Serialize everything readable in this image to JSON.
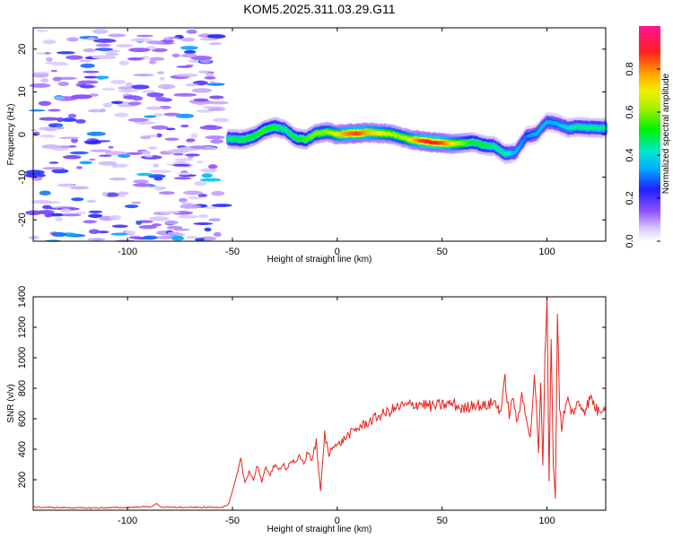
{
  "title": "KOM5.2025.311.03.29.G11",
  "colors": {
    "snr_line": "#e8231e",
    "echo_low": "#8a3cff",
    "echo_mid": "#00e0c0",
    "echo_high": "#ff2020",
    "noise": "#c9a8ff"
  },
  "chart_data": [
    {
      "type": "heatmap",
      "name": "spectrogram",
      "xlabel": "Height of straight line (km)",
      "ylabel": "Frequency (Hz)",
      "xlim": [
        -145,
        128
      ],
      "ylim": [
        -25,
        25
      ],
      "xticks": [
        -100,
        -50,
        0,
        50,
        100
      ],
      "yticks": [
        -20,
        -10,
        0,
        10,
        20
      ],
      "colorbar": {
        "label": "Normalized spectral amplitude",
        "range": [
          0,
          1
        ],
        "ticks": [
          "0.0",
          "0.2",
          "0.4",
          "0.6",
          "0.8"
        ],
        "tick_values": [
          0.0,
          0.2,
          0.4,
          0.6,
          0.8
        ]
      },
      "echo_trace": {
        "height_km": [
          -52,
          -45,
          -40,
          -35,
          -30,
          -25,
          -20,
          -15,
          -10,
          -5,
          0,
          5,
          10,
          15,
          20,
          25,
          30,
          35,
          40,
          45,
          50,
          55,
          60,
          65,
          70,
          75,
          80,
          85,
          90,
          95,
          100,
          105,
          110,
          115,
          120,
          128
        ],
        "frequency_hz": [
          -1.0,
          -1.2,
          -0.5,
          1.0,
          1.8,
          1.2,
          -0.8,
          -1.2,
          0.2,
          0.6,
          0.0,
          0.2,
          0.3,
          0.5,
          0.3,
          0.2,
          -0.5,
          -1.2,
          -1.5,
          -1.8,
          -2.0,
          -2.2,
          -2.0,
          -1.8,
          -2.5,
          -2.8,
          -4.5,
          -4.2,
          -0.5,
          0.2,
          3.0,
          2.5,
          1.5,
          1.8,
          1.6,
          1.5
        ],
        "amplitude": [
          0.45,
          0.5,
          0.5,
          0.55,
          0.5,
          0.45,
          0.5,
          0.55,
          0.6,
          0.6,
          0.7,
          0.8,
          0.85,
          0.75,
          0.7,
          0.65,
          0.6,
          0.7,
          0.85,
          0.9,
          0.85,
          0.7,
          0.6,
          0.5,
          0.5,
          0.45,
          0.45,
          0.35,
          0.3,
          0.35,
          0.35,
          0.35,
          0.4,
          0.45,
          0.45,
          0.45
        ]
      },
      "noise_region_km": [
        -145,
        -55
      ],
      "noise_amplitude_max": 0.35
    },
    {
      "type": "line",
      "name": "snr",
      "xlabel": "Height of straight line (km)",
      "ylabel": "SNR (v/v)",
      "xlim": [
        -145,
        128
      ],
      "ylim": [
        0,
        1400
      ],
      "xticks": [
        -100,
        -50,
        0,
        50,
        100
      ],
      "yticks": [
        200,
        400,
        600,
        800,
        1000,
        1200,
        1400
      ],
      "series": [
        {
          "name": "SNR",
          "x": [
            -145,
            -120,
            -100,
            -88,
            -86,
            -84,
            -70,
            -55,
            -52,
            -50,
            -48,
            -46,
            -45,
            -44,
            -42,
            -40,
            -38,
            -36,
            -34,
            -32,
            -30,
            -28,
            -26,
            -24,
            -22,
            -20,
            -18,
            -16,
            -14,
            -12,
            -10,
            -8,
            -6,
            -4,
            -2,
            0,
            5,
            10,
            15,
            20,
            25,
            30,
            35,
            40,
            45,
            50,
            55,
            60,
            65,
            70,
            75,
            78,
            80,
            82,
            84,
            86,
            88,
            90,
            92,
            94,
            96,
            97,
            98,
            99,
            100,
            101,
            102,
            103,
            104,
            105,
            106,
            107,
            108,
            110,
            112,
            115,
            118,
            121,
            124,
            128
          ],
          "y": [
            20,
            15,
            18,
            25,
            45,
            20,
            18,
            20,
            35,
            120,
            220,
            330,
            250,
            180,
            260,
            200,
            300,
            180,
            280,
            240,
            290,
            260,
            310,
            270,
            330,
            300,
            350,
            310,
            380,
            330,
            450,
            120,
            500,
            360,
            440,
            420,
            490,
            540,
            580,
            620,
            650,
            680,
            690,
            700,
            680,
            690,
            700,
            660,
            700,
            680,
            710,
            650,
            860,
            620,
            740,
            560,
            760,
            640,
            460,
            900,
            380,
            820,
            300,
            1000,
            1420,
            200,
            1150,
            300,
            80,
            1300,
            700,
            500,
            640,
            720,
            640,
            700,
            660,
            740,
            650,
            690
          ]
        }
      ]
    }
  ]
}
